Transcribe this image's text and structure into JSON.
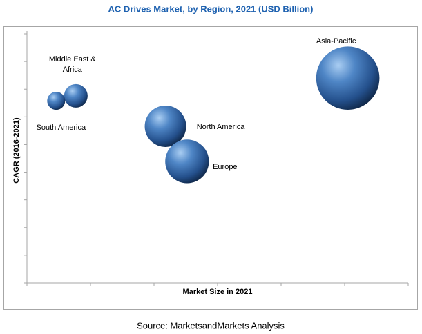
{
  "chart_data": {
    "type": "bubble",
    "title": "AC Drives Market, by Region, 2021 (USD Billion)",
    "x_label": "Market Size in 2021",
    "y_label": "CAGR (2016-2021)",
    "source": "Source: MarketsandMarkets Analysis",
    "categories": [
      "Asia-Pacific",
      "North America",
      "Europe",
      "Middle East & Africa",
      "South America"
    ],
    "x": [
      5.05,
      2.18,
      2.52,
      0.77,
      0.46
    ],
    "values": [
      7.4,
      5.66,
      4.39,
      6.76,
      6.58
    ],
    "sizes": [
      21,
      9,
      10,
      2.9,
      1.7
    ],
    "color": "#2f5f9e",
    "xlim": [
      0,
      6
    ],
    "xticks": [
      0,
      1,
      2,
      3,
      4,
      5,
      6
    ],
    "ylim": [
      0,
      9
    ],
    "yticks": [
      0,
      1,
      2,
      3,
      4,
      5,
      6,
      7,
      8,
      9
    ]
  }
}
